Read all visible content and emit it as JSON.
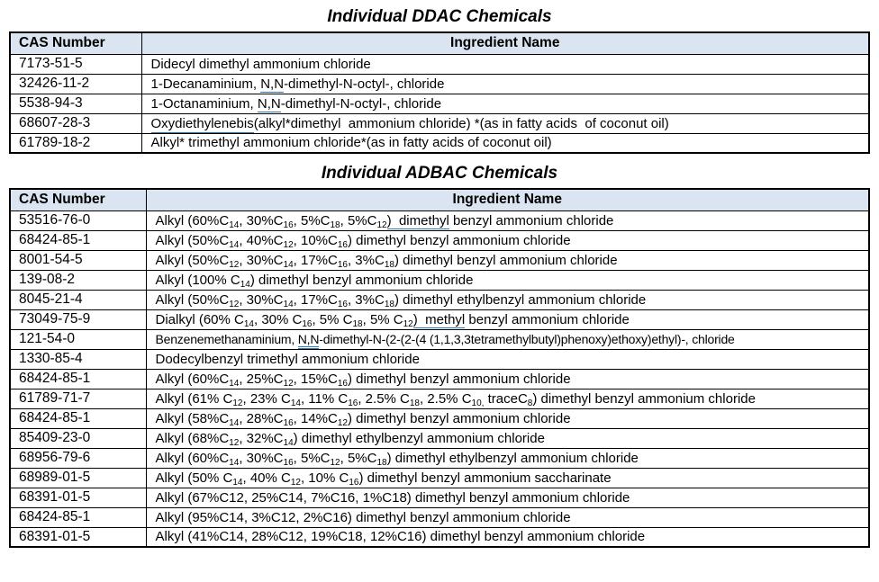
{
  "colors": {
    "page_background": "#ffffff",
    "header_background": "#dbe5f1",
    "table_border": "#000000",
    "text": "#000000",
    "grammar_underline_blue": "#2e74b5"
  },
  "tables": [
    {
      "id": "ddac",
      "title": "Individual DDAC Chemicals",
      "columns": [
        "CAS Number",
        "Ingredient Name"
      ],
      "rows": [
        {
          "cas": "7173-51-5",
          "name": "Didecyl dimethyl ammonium chloride"
        },
        {
          "cas": "32426-11-2",
          "name": "1-Decanaminium, {u}N,N{/u}-dimethyl-N-octyl-, chloride"
        },
        {
          "cas": "5538-94-3",
          "name": "1-Octanaminium, {u}N,N{/u}-dimethyl-N-octyl-, chloride"
        },
        {
          "cas": "68607-28-3",
          "name": "{su}Oxydiethylenebis{/su}(alkyl*dimethyl  ammonium chloride) *(as in fatty acids  of coconut oil)"
        },
        {
          "cas": "61789-18-2",
          "name": "Alkyl* trimethyl ammonium chloride*(as in fatty acids of coconut oil)"
        }
      ]
    },
    {
      "id": "adbac",
      "title": "Individual ADBAC Chemicals",
      "columns": [
        "CAS Number",
        "Ingredient Name"
      ],
      "rows": [
        {
          "cas": "53516-76-0",
          "name": "Alkyl (60%C~14~, 30%C~16~, 5%C~18~, 5%C~12~{u})  dimethyl{/u} benzyl ammonium chloride"
        },
        {
          "cas": "68424-85-1",
          "name": "Alkyl (50%C~14~, 40%C~12~, 10%C~16~) dimethyl benzyl ammonium chloride"
        },
        {
          "cas": "8001-54-5",
          "name": "Alkyl (50%C~12~, 30%C~14~, 17%C~16~, 3%C~18~) dimethyl benzyl ammonium chloride"
        },
        {
          "cas": "139-08-2",
          "name": "Alkyl (100% C~14~) dimethyl benzyl ammonium chloride"
        },
        {
          "cas": "8045-21-4",
          "name": "Alkyl (50%C~12~, 30%C~14~, 17%C~16~, 3%C~18~) dimethyl ethylbenzyl ammonium chloride"
        },
        {
          "cas": "73049-75-9",
          "name": "Dialkyl (60% C~14~, 30% C~16~, 5% C~18~, 5% C~12~{u})  methyl{/u} benzyl ammonium chloride"
        },
        {
          "cas": "121-54-0",
          "name": "Benzenemethanaminium, {u}N,N{/u}-dimethyl-N-(2-(2-(4 (1,1,3,3tetramethylbutyl)phenoxy)ethoxy)ethyl)-, chloride",
          "small": true
        },
        {
          "cas": "1330-85-4",
          "name": "Dodecylbenzyl trimethyl ammonium chloride"
        },
        {
          "cas": "68424-85-1",
          "name": "Alkyl (60%C~14~, 25%C~12~, 15%C~16~) dimethyl benzyl ammonium chloride"
        },
        {
          "cas": "61789-71-7",
          "name": "Alkyl (61% C~12~, 23% C~14~, 11% C~16~, 2.5% C~18~, 2.5% C~10,~ traceC~8~) dimethyl benzyl ammonium chloride"
        },
        {
          "cas": "68424-85-1",
          "name": "Alkyl (58%C~14~, 28%C~16~, 14%C~12~) dimethyl benzyl ammonium chloride"
        },
        {
          "cas": "85409-23-0",
          "name": "Alkyl (68%C~12~, 32%C~14~) dimethyl ethylbenzyl ammonium chloride"
        },
        {
          "cas": "68956-79-6",
          "name": "Alkyl (60%C~14~, 30%C~16~, 5%C~12~, 5%C~18~) dimethyl ethylbenzyl ammonium chloride"
        },
        {
          "cas": "68989-01-5",
          "name": "Alkyl (50% C~14~, 40% C~12~, 10% C~16~) dimethyl benzyl ammonium saccharinate"
        },
        {
          "cas": "68391-01-5",
          "name": "Alkyl (67%C12, 25%C14, 7%C16, 1%C18) dimethyl benzyl ammonium chloride"
        },
        {
          "cas": "68424-85-1",
          "name": "Alkyl (95%C14, 3%C12, 2%C16) dimethyl benzyl ammonium chloride"
        },
        {
          "cas": "68391-01-5",
          "name": "Alkyl (41%C14, 28%C12, 19%C18, 12%C16) dimethyl benzyl ammonium chloride"
        }
      ]
    }
  ]
}
